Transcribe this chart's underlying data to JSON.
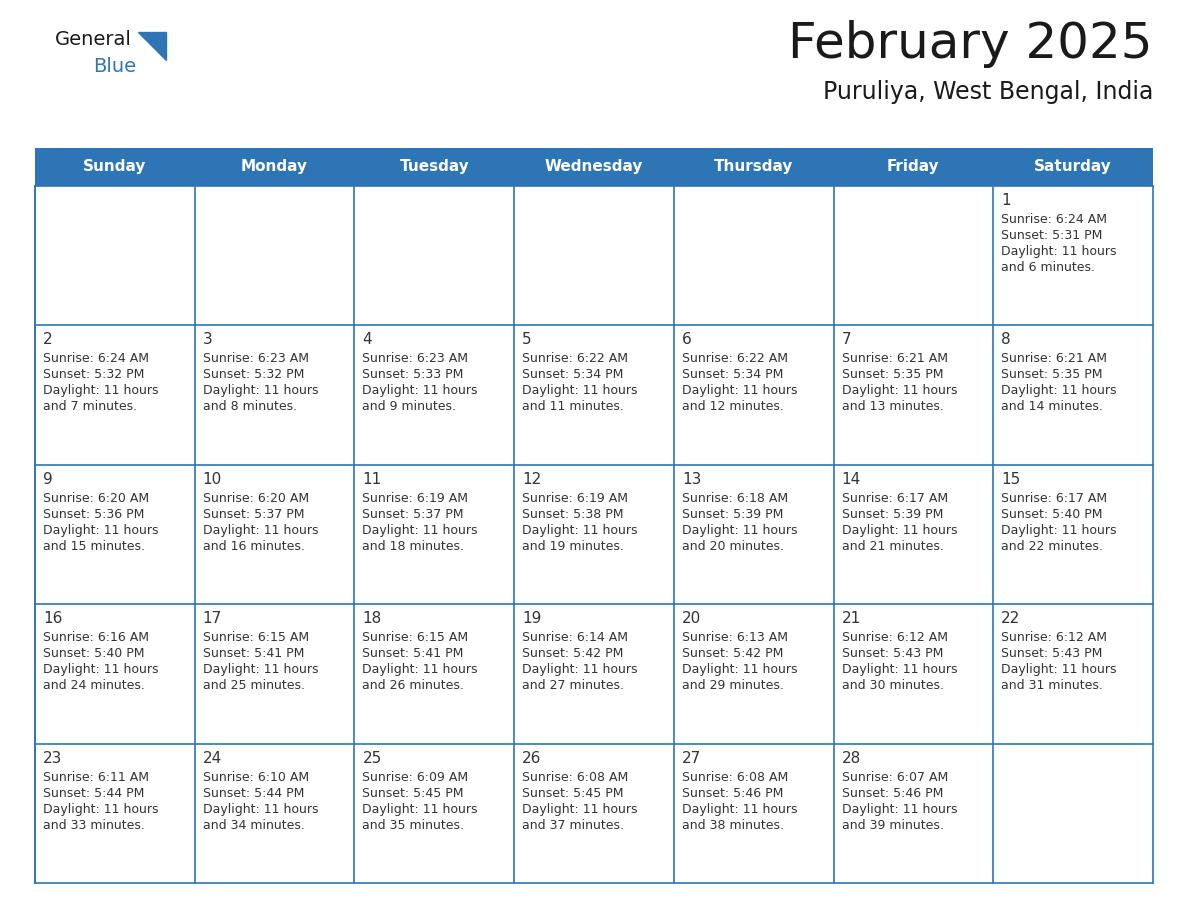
{
  "title": "February 2025",
  "subtitle": "Puruliya, West Bengal, India",
  "header_bg": "#2E75B6",
  "header_text_color": "#FFFFFF",
  "days_of_week": [
    "Sunday",
    "Monday",
    "Tuesday",
    "Wednesday",
    "Thursday",
    "Friday",
    "Saturday"
  ],
  "bg_color": "#FFFFFF",
  "cell_border_color": "#2E75B6",
  "day_number_color": "#333333",
  "info_text_color": "#333333",
  "logo_general_color": "#1a1a1a",
  "logo_blue_color": "#2E75B6",
  "title_color": "#1a1a1a",
  "subtitle_color": "#1a1a1a",
  "calendar_data": [
    [
      {
        "day": null
      },
      {
        "day": null
      },
      {
        "day": null
      },
      {
        "day": null
      },
      {
        "day": null
      },
      {
        "day": null
      },
      {
        "day": 1,
        "sunrise": "6:24 AM",
        "sunset": "5:31 PM",
        "daylight": "11 hours and 6 minutes."
      }
    ],
    [
      {
        "day": 2,
        "sunrise": "6:24 AM",
        "sunset": "5:32 PM",
        "daylight": "11 hours and 7 minutes."
      },
      {
        "day": 3,
        "sunrise": "6:23 AM",
        "sunset": "5:32 PM",
        "daylight": "11 hours and 8 minutes."
      },
      {
        "day": 4,
        "sunrise": "6:23 AM",
        "sunset": "5:33 PM",
        "daylight": "11 hours and 9 minutes."
      },
      {
        "day": 5,
        "sunrise": "6:22 AM",
        "sunset": "5:34 PM",
        "daylight": "11 hours and 11 minutes."
      },
      {
        "day": 6,
        "sunrise": "6:22 AM",
        "sunset": "5:34 PM",
        "daylight": "11 hours and 12 minutes."
      },
      {
        "day": 7,
        "sunrise": "6:21 AM",
        "sunset": "5:35 PM",
        "daylight": "11 hours and 13 minutes."
      },
      {
        "day": 8,
        "sunrise": "6:21 AM",
        "sunset": "5:35 PM",
        "daylight": "11 hours and 14 minutes."
      }
    ],
    [
      {
        "day": 9,
        "sunrise": "6:20 AM",
        "sunset": "5:36 PM",
        "daylight": "11 hours and 15 minutes."
      },
      {
        "day": 10,
        "sunrise": "6:20 AM",
        "sunset": "5:37 PM",
        "daylight": "11 hours and 16 minutes."
      },
      {
        "day": 11,
        "sunrise": "6:19 AM",
        "sunset": "5:37 PM",
        "daylight": "11 hours and 18 minutes."
      },
      {
        "day": 12,
        "sunrise": "6:19 AM",
        "sunset": "5:38 PM",
        "daylight": "11 hours and 19 minutes."
      },
      {
        "day": 13,
        "sunrise": "6:18 AM",
        "sunset": "5:39 PM",
        "daylight": "11 hours and 20 minutes."
      },
      {
        "day": 14,
        "sunrise": "6:17 AM",
        "sunset": "5:39 PM",
        "daylight": "11 hours and 21 minutes."
      },
      {
        "day": 15,
        "sunrise": "6:17 AM",
        "sunset": "5:40 PM",
        "daylight": "11 hours and 22 minutes."
      }
    ],
    [
      {
        "day": 16,
        "sunrise": "6:16 AM",
        "sunset": "5:40 PM",
        "daylight": "11 hours and 24 minutes."
      },
      {
        "day": 17,
        "sunrise": "6:15 AM",
        "sunset": "5:41 PM",
        "daylight": "11 hours and 25 minutes."
      },
      {
        "day": 18,
        "sunrise": "6:15 AM",
        "sunset": "5:41 PM",
        "daylight": "11 hours and 26 minutes."
      },
      {
        "day": 19,
        "sunrise": "6:14 AM",
        "sunset": "5:42 PM",
        "daylight": "11 hours and 27 minutes."
      },
      {
        "day": 20,
        "sunrise": "6:13 AM",
        "sunset": "5:42 PM",
        "daylight": "11 hours and 29 minutes."
      },
      {
        "day": 21,
        "sunrise": "6:12 AM",
        "sunset": "5:43 PM",
        "daylight": "11 hours and 30 minutes."
      },
      {
        "day": 22,
        "sunrise": "6:12 AM",
        "sunset": "5:43 PM",
        "daylight": "11 hours and 31 minutes."
      }
    ],
    [
      {
        "day": 23,
        "sunrise": "6:11 AM",
        "sunset": "5:44 PM",
        "daylight": "11 hours and 33 minutes."
      },
      {
        "day": 24,
        "sunrise": "6:10 AM",
        "sunset": "5:44 PM",
        "daylight": "11 hours and 34 minutes."
      },
      {
        "day": 25,
        "sunrise": "6:09 AM",
        "sunset": "5:45 PM",
        "daylight": "11 hours and 35 minutes."
      },
      {
        "day": 26,
        "sunrise": "6:08 AM",
        "sunset": "5:45 PM",
        "daylight": "11 hours and 37 minutes."
      },
      {
        "day": 27,
        "sunrise": "6:08 AM",
        "sunset": "5:46 PM",
        "daylight": "11 hours and 38 minutes."
      },
      {
        "day": 28,
        "sunrise": "6:07 AM",
        "sunset": "5:46 PM",
        "daylight": "11 hours and 39 minutes."
      },
      {
        "day": null
      }
    ]
  ]
}
